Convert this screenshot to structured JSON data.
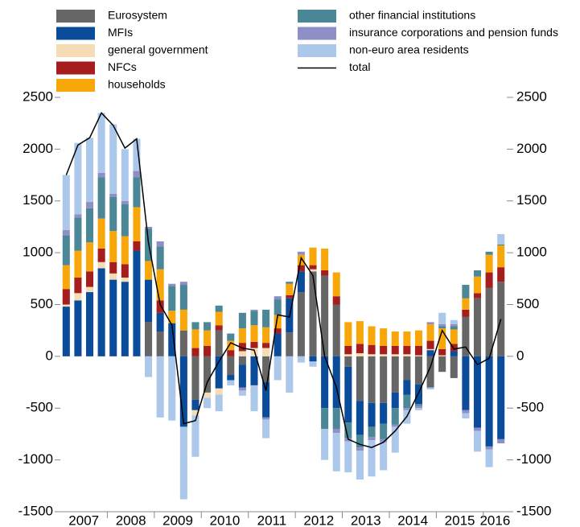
{
  "chart_data": {
    "type": "bar",
    "stacked": true,
    "categories": [
      "2007",
      null,
      null,
      null,
      "2008",
      null,
      null,
      null,
      "2009",
      null,
      null,
      null,
      "2010",
      null,
      null,
      null,
      "2011",
      null,
      null,
      null,
      "2012",
      null,
      null,
      null,
      "2013",
      null,
      null,
      null,
      "2014",
      null,
      null,
      null,
      "2015",
      null,
      null,
      null,
      "2016",
      null
    ],
    "series": [
      {
        "name": "Eurosystem",
        "color": "#666666",
        "values": [
          0,
          0,
          0,
          0,
          0,
          0,
          0,
          330,
          240,
          0,
          250,
          -420,
          -350,
          250,
          -180,
          -80,
          0,
          -250,
          0,
          230,
          620,
          820,
          780,
          500,
          -100,
          -430,
          -450,
          -450,
          -350,
          -230,
          -270,
          -300,
          -150,
          -210,
          380,
          560,
          660,
          720
        ]
      },
      {
        "name": "MFIs",
        "color": "#0b4c9a",
        "values": [
          480,
          540,
          620,
          850,
          740,
          720,
          1020,
          410,
          180,
          320,
          -680,
          -100,
          0,
          -310,
          -50,
          -220,
          -280,
          -340,
          220,
          330,
          200,
          -50,
          -500,
          -500,
          -540,
          -330,
          -230,
          -200,
          -150,
          -140,
          -190,
          60,
          0,
          50,
          -520,
          -690,
          -870,
          -800
        ]
      },
      {
        "name": "general government",
        "color": "#f5dcb4",
        "values": [
          20,
          70,
          50,
          60,
          60,
          40,
          0,
          0,
          0,
          0,
          0,
          -50,
          -50,
          -60,
          0,
          50,
          80,
          80,
          0,
          0,
          0,
          20,
          0,
          0,
          20,
          30,
          20,
          20,
          20,
          20,
          10,
          10,
          10,
          0,
          0,
          0,
          0,
          0
        ]
      },
      {
        "name": "NFCs",
        "color": "#a51d1d",
        "values": [
          150,
          150,
          150,
          130,
          110,
          130,
          90,
          0,
          120,
          0,
          0,
          80,
          100,
          50,
          60,
          80,
          60,
          50,
          50,
          30,
          60,
          40,
          50,
          80,
          80,
          90,
          90,
          80,
          80,
          80,
          90,
          80,
          60,
          70,
          70,
          50,
          150,
          140
        ]
      },
      {
        "name": "households",
        "color": "#f7a70a",
        "values": [
          230,
          260,
          280,
          290,
          300,
          270,
          330,
          180,
          300,
          120,
          200,
          180,
          150,
          130,
          90,
          140,
          160,
          150,
          130,
          110,
          100,
          170,
          210,
          230,
          230,
          220,
          180,
          170,
          140,
          140,
          150,
          160,
          200,
          140,
          110,
          160,
          170,
          210
        ]
      },
      {
        "name": "other financial institutions",
        "color": "#4b8797",
        "values": [
          290,
          320,
          330,
          400,
          330,
          310,
          290,
          310,
          220,
          240,
          240,
          70,
          80,
          60,
          70,
          150,
          140,
          170,
          150,
          20,
          0,
          0,
          -200,
          -200,
          -150,
          -120,
          -100,
          -150,
          -160,
          -130,
          -20,
          0,
          20,
          30,
          130,
          60,
          30,
          10
        ]
      },
      {
        "name": "insurance corporations and pension funds",
        "color": "#8e8fc6",
        "values": [
          50,
          30,
          60,
          40,
          30,
          30,
          60,
          20,
          50,
          20,
          30,
          0,
          0,
          0,
          0,
          -30,
          10,
          -20,
          30,
          0,
          30,
          0,
          0,
          -40,
          -30,
          -30,
          -30,
          -30,
          -20,
          -20,
          -20,
          20,
          20,
          20,
          -30,
          -30,
          -30,
          -40
        ]
      },
      {
        "name": "non-euro area residents",
        "color": "#abc8ea",
        "values": [
          530,
          690,
          620,
          580,
          670,
          500,
          310,
          -200,
          -590,
          -620,
          -700,
          -400,
          -100,
          -160,
          -50,
          -50,
          -250,
          -180,
          -230,
          -350,
          -60,
          -50,
          -300,
          -370,
          -300,
          -280,
          -350,
          -270,
          -250,
          -130,
          -20,
          -20,
          110,
          40,
          -50,
          -200,
          -170,
          100
        ]
      }
    ],
    "line": {
      "name": "total",
      "color": "#000000",
      "values": [
        1750,
        2040,
        2110,
        2350,
        2230,
        2010,
        2100,
        1100,
        500,
        300,
        -650,
        -620,
        -250,
        -50,
        130,
        80,
        60,
        -330,
        400,
        380,
        950,
        780,
        0,
        -300,
        -800,
        -850,
        -880,
        -830,
        -720,
        -580,
        -350,
        -100,
        250,
        70,
        90,
        -80,
        -20,
        360
      ]
    },
    "ylim": [
      -1500,
      2500
    ],
    "yticks": [
      -1500,
      -1000,
      -500,
      0,
      500,
      1000,
      1500,
      2000,
      2500
    ],
    "y2lim": [
      -1500,
      2500
    ],
    "y2ticks": [
      -1500,
      -1000,
      -500,
      0,
      500,
      1000,
      1500,
      2000,
      2500
    ]
  }
}
